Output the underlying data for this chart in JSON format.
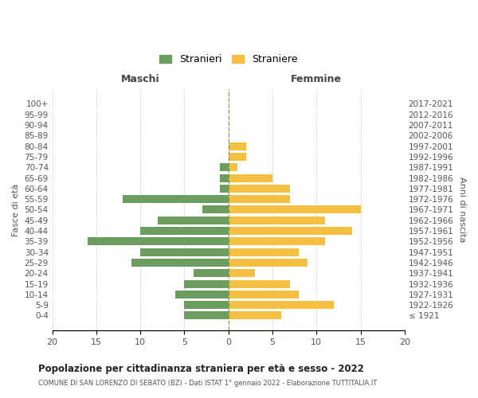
{
  "age_groups": [
    "100+",
    "95-99",
    "90-94",
    "85-89",
    "80-84",
    "75-79",
    "70-74",
    "65-69",
    "60-64",
    "55-59",
    "50-54",
    "45-49",
    "40-44",
    "35-39",
    "30-34",
    "25-29",
    "20-24",
    "15-19",
    "10-14",
    "5-9",
    "0-4"
  ],
  "birth_years": [
    "≤ 1921",
    "1922-1926",
    "1927-1931",
    "1932-1936",
    "1937-1941",
    "1942-1946",
    "1947-1951",
    "1952-1956",
    "1957-1961",
    "1962-1966",
    "1967-1971",
    "1972-1976",
    "1977-1981",
    "1982-1986",
    "1987-1991",
    "1992-1996",
    "1997-2001",
    "2002-2006",
    "2007-2011",
    "2012-2016",
    "2017-2021"
  ],
  "males": [
    0,
    0,
    0,
    0,
    0,
    0,
    1,
    1,
    1,
    12,
    3,
    8,
    10,
    16,
    10,
    11,
    4,
    5,
    6,
    5,
    5
  ],
  "females": [
    0,
    0,
    0,
    0,
    2,
    2,
    1,
    5,
    7,
    7,
    15,
    11,
    14,
    11,
    8,
    9,
    3,
    7,
    8,
    12,
    6
  ],
  "male_color": "#6b9e5e",
  "female_color": "#f5bf42",
  "title": "Popolazione per cittadinanza straniera per età e sesso - 2022",
  "subtitle": "COMUNE DI SAN LORENZO DI SEBATO (BZ) - Dati ISTAT 1° gennaio 2022 - Elaborazione TUTTITALIA.IT",
  "ylabel_left": "Fasce di età",
  "ylabel_right": "Anni di nascita",
  "xlabel_left": "Maschi",
  "xlabel_right": "Femmine",
  "legend_male": "Stranieri",
  "legend_female": "Straniere",
  "xlim": 20,
  "background_color": "#ffffff",
  "grid_color": "#cccccc"
}
